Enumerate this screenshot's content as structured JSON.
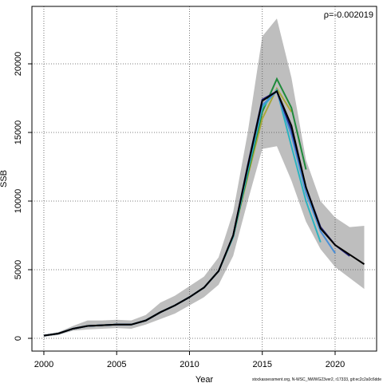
{
  "chart_data": {
    "type": "line",
    "annotation": "ρ=-0.002019",
    "xlabel": "Year",
    "ylabel": "SSB",
    "footer": "stockassessment.org, N-WSC_NWWG23ver2, r17333, git:ec2c2a0c6dde",
    "x": [
      2000,
      2001,
      2002,
      2003,
      2004,
      2005,
      2006,
      2007,
      2008,
      2009,
      2010,
      2011,
      2012,
      2013,
      2014,
      2015,
      2016,
      2017,
      2018,
      2019,
      2020,
      2021,
      2022
    ],
    "band": {
      "color": "#bebebe",
      "upper": [
        250,
        450,
        900,
        1300,
        1300,
        1350,
        1300,
        1700,
        2600,
        3100,
        3800,
        4500,
        5900,
        9200,
        15000,
        22000,
        23300,
        19000,
        13000,
        10000,
        8800,
        8100,
        8200
      ],
      "lower": [
        100,
        250,
        550,
        650,
        700,
        750,
        700,
        1000,
        1400,
        1800,
        2400,
        3000,
        3900,
        6000,
        10000,
        13800,
        14000,
        11500,
        8500,
        6500,
        5200,
        4400,
        3600
      ]
    },
    "series": [
      {
        "color": "#000000",
        "values": [
          200,
          350,
          700,
          900,
          950,
          1000,
          1000,
          1300,
          1900,
          2400,
          3000,
          3700,
          4900,
          7500,
          12500,
          17300,
          18000,
          15500,
          11000,
          8000,
          6800,
          6100,
          5400
        ]
      },
      {
        "color": "#1f1f7a",
        "values": [
          200,
          350,
          700,
          900,
          950,
          1000,
          1000,
          1300,
          1900,
          2400,
          3000,
          3700,
          4900,
          7500,
          12600,
          17400,
          18000,
          15200,
          11000,
          8100,
          6800,
          6000,
          null
        ]
      },
      {
        "color": "#4a8fd8",
        "values": [
          200,
          350,
          700,
          900,
          950,
          1000,
          1000,
          1300,
          1900,
          2400,
          3000,
          3700,
          4900,
          7500,
          12400,
          17000,
          18000,
          14800,
          10600,
          7800,
          6200,
          null,
          null
        ]
      },
      {
        "color": "#2bb3c0",
        "values": [
          200,
          350,
          700,
          900,
          950,
          1000,
          1000,
          1300,
          1900,
          2400,
          3000,
          3700,
          4900,
          7400,
          12200,
          16800,
          18100,
          14000,
          10000,
          7000,
          null,
          null,
          null
        ]
      },
      {
        "color": "#1e8a3a",
        "values": [
          200,
          350,
          700,
          900,
          950,
          1000,
          1000,
          1300,
          1900,
          2400,
          3000,
          3700,
          4900,
          7400,
          12000,
          16500,
          18900,
          16800,
          12300,
          null,
          null,
          null,
          null
        ]
      },
      {
        "color": "#a8a83a",
        "values": [
          200,
          350,
          700,
          900,
          950,
          1000,
          1000,
          1300,
          1900,
          2400,
          3000,
          3700,
          4900,
          7400,
          11800,
          16000,
          18200,
          16500,
          null,
          null,
          null,
          null,
          null
        ]
      }
    ],
    "xlim": [
      1999.18,
      2022.85
    ],
    "xticks": [
      2000,
      2005,
      2010,
      2015,
      2020
    ],
    "ylim": [
      -930,
      24186
    ],
    "yticks": [
      0,
      5000,
      10000,
      15000,
      20000
    ],
    "grid": true
  }
}
